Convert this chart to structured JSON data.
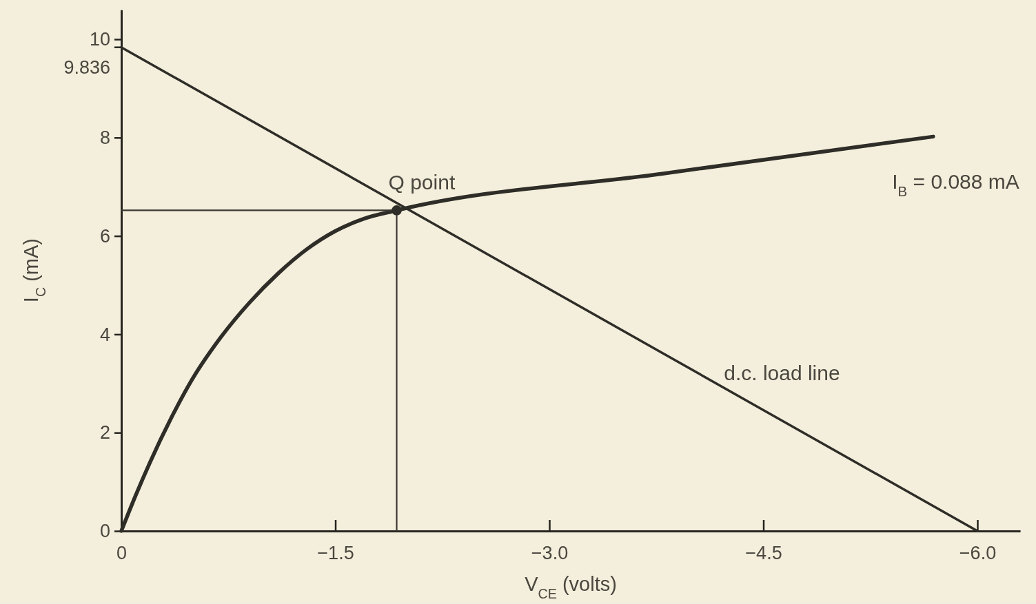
{
  "chart_data": {
    "type": "line",
    "xlabel": "V$_{CE}$ (volts)",
    "ylabel": "I$_{C}$ (mA)",
    "xlim": [
      0,
      -6.3
    ],
    "ylim": [
      0,
      10.6
    ],
    "xticks": [
      0,
      {
        "value": -1.5,
        "label": "−1.5"
      },
      {
        "value": -3,
        "label": "−3.0"
      },
      {
        "value": -4.5,
        "label": "−4.5"
      },
      {
        "value": -6,
        "label": "−6.0"
      }
    ],
    "yticks": [
      0,
      2,
      4,
      6,
      8,
      10
    ],
    "series": [
      {
        "color": "#2f2d28",
        "x": [
          0,
          -6
        ],
        "values": [
          9.836,
          0
        ]
      },
      {
        "color": "#2f2d28",
        "x": [
          0,
          -0.1,
          -0.2,
          -0.35,
          -0.5,
          -0.7,
          -0.9,
          -1.1,
          -1.3,
          -1.5,
          -1.7,
          -1.93,
          -3.8,
          -5.69
        ],
        "values": [
          0,
          0.72,
          1.39,
          2.3,
          3.1,
          3.95,
          4.65,
          5.24,
          5.73,
          6.1,
          6.35,
          6.52,
          7.27,
          8.02
        ]
      },
      {
        "color": "#3a3832",
        "x": [
          0,
          -1.93,
          -1.93
        ],
        "values": [
          6.52,
          6.52,
          0
        ]
      },
      {
        "type": "scatter",
        "color": "#2f2d28",
        "marker": "circle",
        "x": [
          -1.93
        ],
        "values": [
          6.52
        ]
      }
    ],
    "annotations": [
      {
        "text": "Q point",
        "x": -1.93,
        "y": 6.52
      },
      {
        "text": "I$_{B}$ = 0.088 mA",
        "x": -5.69,
        "y": 8.02
      },
      {
        "text": "d.c. load line",
        "x": -4.03,
        "y": 3.23
      },
      {
        "text": "9.836",
        "x": 0,
        "y": 9.836
      }
    ]
  }
}
